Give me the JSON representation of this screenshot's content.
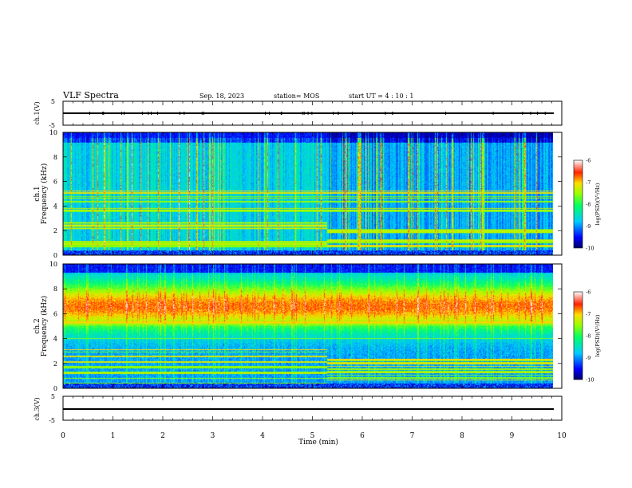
{
  "header": {
    "title": "VLF Spectra",
    "date": "Sep. 18, 2023",
    "station": "station= MOS",
    "start_ut": "start  UT =   4 : 10 : 1"
  },
  "chart_data": [
    {
      "type": "line",
      "panel": "ch1-voltage",
      "ylabel": "ch.1(V)",
      "ylim": [
        -5,
        5
      ],
      "yticks": [
        "5",
        "-5"
      ],
      "xlim": [
        0,
        10
      ],
      "series": [
        {
          "x": [
            0,
            9.85
          ],
          "values": [
            0,
            0
          ]
        }
      ]
    },
    {
      "type": "heatmap",
      "panel": "ch1-spectrogram",
      "ylabel_line1": "ch.1",
      "ylabel_line2": "Frequency (kHz)",
      "ylim": [
        0,
        10
      ],
      "yticks": [
        "0",
        "2",
        "4",
        "6",
        "8",
        "10"
      ],
      "xlim": [
        0,
        10
      ],
      "colorbar": {
        "label": "log(PSD)(V²/Hz)",
        "range": [
          -10,
          -6
        ],
        "ticks": [
          "-6",
          "-7",
          "-8",
          "-9",
          "-10"
        ]
      },
      "noise_band_change_time_min": 5.3
    },
    {
      "type": "heatmap",
      "panel": "ch2-spectrogram",
      "ylabel_line1": "ch.2",
      "ylabel_line2": "Frequency (kHz)",
      "ylim": [
        0,
        10
      ],
      "yticks": [
        "0",
        "2",
        "4",
        "6",
        "8",
        "10"
      ],
      "xlim": [
        0,
        10
      ],
      "colorbar": {
        "label": "log(PSD)(V²/Hz)",
        "range": [
          -10,
          -6
        ],
        "ticks": [
          "-6",
          "-7",
          "-8",
          "-9",
          "-10"
        ]
      },
      "noise_band_change_time_min": 5.3
    },
    {
      "type": "line",
      "panel": "ch3-voltage",
      "ylabel": "ch.3(V)",
      "ylim": [
        -5,
        5
      ],
      "yticks": [
        "5",
        "-5"
      ],
      "xlim": [
        0,
        10
      ],
      "series": [
        {
          "x": [
            0,
            9.85
          ],
          "values": [
            -1.5,
            -1.5
          ]
        }
      ]
    }
  ],
  "x_axis": {
    "label": "Time (min)",
    "ticks": [
      "0",
      "1",
      "2",
      "3",
      "4",
      "5",
      "6",
      "7",
      "8",
      "9",
      "10"
    ]
  }
}
